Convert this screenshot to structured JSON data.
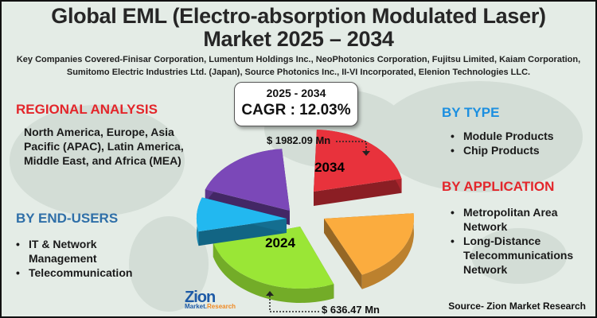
{
  "title_line1": "Global EML (Electro-absorption Modulated Laser)",
  "title_line2": "Market 2025 – 2034",
  "companies": "Key Companies Covered-Finisar Corporation, Lumentum Holdings Inc., NeoPhotonics Corporation, Fujitsu Limited, Kaiam Corporation, Sumitomo Electric Industries Ltd. (Japan), Source Photonics Inc., II-VI Incorporated, Elenion Technologies LLC.",
  "cagr": {
    "period": "2025 - 2034",
    "value": "CAGR : 12.03%"
  },
  "regional": {
    "heading": "REGIONAL ANALYSIS",
    "text": "North America, Europe, Asia Pacific (APAC), Latin America, Middle East, and Africa (MEA)"
  },
  "end_users": {
    "heading": "BY END-USERS",
    "items": [
      "IT & Network Management",
      "Telecommunication"
    ]
  },
  "by_type": {
    "heading": "BY TYPE",
    "items": [
      "Module Products",
      "Chip Products"
    ]
  },
  "by_application": {
    "heading": "BY APPLICATION",
    "items": [
      "Metropolitan Area Network",
      "Long-Distance Telecommunications Network"
    ]
  },
  "pie": {
    "label_2034": "2034",
    "label_2024": "2024",
    "value_2034": "$ 1982.09 Mn",
    "value_2024": "$ 636.47 Mn",
    "colors": {
      "red": "#e8323c",
      "orange": "#fbac3e",
      "green": "#9ae636",
      "blue": "#22b8f0",
      "purple": "#7b48b8"
    }
  },
  "logo": {
    "name": "Zion",
    "sub": "Market.Research"
  },
  "source": "Source- Zion Market Research",
  "colors": {
    "heading_red": "#e3262b",
    "heading_blue": "#2f6fa8",
    "background": "#e4ece6"
  }
}
